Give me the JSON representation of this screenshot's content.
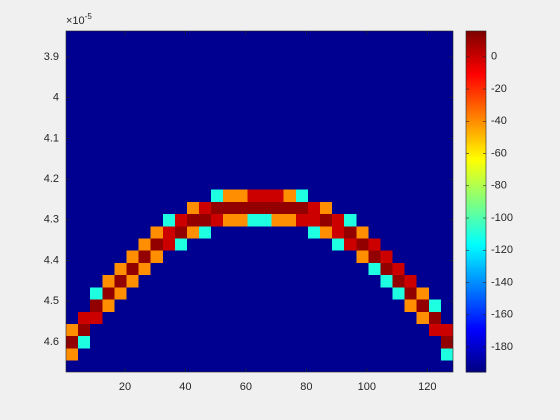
{
  "chart_data": {
    "type": "heatmap",
    "colormap": "jet",
    "xlim": [
      0.5,
      128.5
    ],
    "xticks": [
      20,
      40,
      60,
      80,
      100,
      120
    ],
    "ylim": [
      4.674e-05,
      3.836e-05
    ],
    "yticks": [
      {
        "value": 3.9e-05,
        "label": "3.9"
      },
      {
        "value": 4e-05,
        "label": "4"
      },
      {
        "value": 4.1e-05,
        "label": "4.1"
      },
      {
        "value": 4.2e-05,
        "label": "4.2"
      },
      {
        "value": 4.3e-05,
        "label": "4.3"
      },
      {
        "value": 4.4e-05,
        "label": "4.4"
      },
      {
        "value": 4.5e-05,
        "label": "4.5"
      },
      {
        "value": 4.6e-05,
        "label": "4.6"
      }
    ],
    "y_multiplier": {
      "base": "×10",
      "exponent": "-5"
    },
    "clim": [
      -195.5,
      16
    ],
    "cticks": [
      -180,
      -160,
      -140,
      -120,
      -100,
      -80,
      -60,
      -40,
      -20,
      0
    ],
    "x": [
      2.5,
      6.5,
      10.5,
      14.5,
      18.5,
      22.5,
      26.5,
      30.5,
      34.5,
      38.5,
      42.5,
      46.5,
      50.5,
      54.5,
      58.5,
      62.5,
      66.5,
      70.5,
      74.5,
      78.5,
      82.5,
      86.5,
      90.5,
      94.5,
      98.5,
      102.5,
      106.5,
      110.5,
      114.5,
      118.5,
      122.5,
      126.5
    ],
    "y": [
      3.851e-05,
      3.881e-05,
      3.911e-05,
      3.941e-05,
      3.971e-05,
      4.001e-05,
      4.031e-05,
      4.061e-05,
      4.091e-05,
      4.121e-05,
      4.151e-05,
      4.181e-05,
      4.211e-05,
      4.241e-05,
      4.271e-05,
      4.301e-05,
      4.331e-05,
      4.361e-05,
      4.391e-05,
      4.421e-05,
      4.451e-05,
      4.481e-05,
      4.511e-05,
      4.541e-05,
      4.571e-05,
      4.601e-05,
      4.631e-05,
      4.661e-05
    ],
    "z": [
      [
        -192,
        -192,
        -192,
        -192,
        -192,
        -192,
        -192,
        -192,
        -192,
        -192,
        -192,
        -192,
        -192,
        -192,
        -192,
        -192,
        -192,
        -192,
        -192,
        -192,
        -192,
        -192,
        -192,
        -192,
        -192,
        -192,
        -192,
        -192,
        -192,
        -192,
        -192,
        -192
      ],
      [
        -192,
        -192,
        -192,
        -192,
        -192,
        -192,
        -192,
        -192,
        -192,
        -192,
        -192,
        -192,
        -192,
        -192,
        -192,
        -192,
        -192,
        -192,
        -192,
        -192,
        -192,
        -192,
        -192,
        -192,
        -192,
        -192,
        -192,
        -192,
        -192,
        -192,
        -192,
        -192
      ],
      [
        -192,
        -192,
        -192,
        -192,
        -192,
        -192,
        -192,
        -192,
        -192,
        -192,
        -192,
        -192,
        -192,
        -192,
        -192,
        -192,
        -192,
        -192,
        -192,
        -192,
        -192,
        -192,
        -192,
        -192,
        -192,
        -192,
        -192,
        -192,
        -192,
        -192,
        -192,
        -192
      ],
      [
        -192,
        -192,
        -192,
        -192,
        -192,
        -192,
        -192,
        -192,
        -192,
        -192,
        -192,
        -192,
        -192,
        -192,
        -192,
        -192,
        -192,
        -192,
        -192,
        -192,
        -192,
        -192,
        -192,
        -192,
        -192,
        -192,
        -192,
        -192,
        -192,
        -192,
        -192,
        -192
      ],
      [
        -192,
        -192,
        -192,
        -192,
        -192,
        -192,
        -192,
        -192,
        -192,
        -192,
        -192,
        -192,
        -192,
        -192,
        -192,
        -192,
        -192,
        -192,
        -192,
        -192,
        -192,
        -192,
        -192,
        -192,
        -192,
        -192,
        -192,
        -192,
        -192,
        -192,
        -192,
        -192
      ],
      [
        -192,
        -192,
        -192,
        -192,
        -192,
        -192,
        -192,
        -192,
        -192,
        -192,
        -192,
        -192,
        -192,
        -192,
        -192,
        -192,
        -192,
        -192,
        -192,
        -192,
        -192,
        -192,
        -192,
        -192,
        -192,
        -192,
        -192,
        -192,
        -192,
        -192,
        -192,
        -192
      ],
      [
        -192,
        -192,
        -192,
        -192,
        -192,
        -192,
        -192,
        -192,
        -192,
        -192,
        -192,
        -192,
        -192,
        -192,
        -192,
        -192,
        -192,
        -192,
        -192,
        -192,
        -192,
        -192,
        -192,
        -192,
        -192,
        -192,
        -192,
        -192,
        -192,
        -192,
        -192,
        -192
      ],
      [
        -192,
        -192,
        -192,
        -192,
        -192,
        -192,
        -192,
        -192,
        -192,
        -192,
        -192,
        -192,
        -192,
        -192,
        -192,
        -192,
        -192,
        -192,
        -192,
        -192,
        -192,
        -192,
        -192,
        -192,
        -192,
        -192,
        -192,
        -192,
        -192,
        -192,
        -192,
        -192
      ],
      [
        -192,
        -192,
        -192,
        -192,
        -192,
        -192,
        -192,
        -192,
        -192,
        -192,
        -192,
        -192,
        -192,
        -192,
        -192,
        -192,
        -192,
        -192,
        -192,
        -192,
        -192,
        -192,
        -192,
        -192,
        -192,
        -192,
        -192,
        -192,
        -192,
        -192,
        -192,
        -192
      ],
      [
        -192,
        -192,
        -192,
        -192,
        -192,
        -192,
        -192,
        -192,
        -192,
        -192,
        -192,
        -192,
        -192,
        -192,
        -192,
        -192,
        -192,
        -192,
        -192,
        -192,
        -192,
        -192,
        -192,
        -192,
        -192,
        -192,
        -192,
        -192,
        -192,
        -192,
        -192,
        -192
      ],
      [
        -192,
        -192,
        -192,
        -192,
        -192,
        -192,
        -192,
        -192,
        -192,
        -192,
        -192,
        -192,
        -192,
        -192,
        -192,
        -192,
        -192,
        -192,
        -192,
        -192,
        -192,
        -192,
        -192,
        -192,
        -192,
        -192,
        -192,
        -192,
        -192,
        -192,
        -192,
        -192
      ],
      [
        -192,
        -192,
        -192,
        -192,
        -192,
        -192,
        -192,
        -192,
        -192,
        -192,
        -192,
        -192,
        -192,
        -192,
        -192,
        -192,
        -192,
        -192,
        -192,
        -192,
        -192,
        -192,
        -192,
        -192,
        -192,
        -192,
        -192,
        -192,
        -192,
        -192,
        -192,
        -192
      ],
      [
        -192,
        -192,
        -192,
        -192,
        -192,
        -192,
        -192,
        -192,
        -192,
        -192,
        -192,
        -192,
        -192,
        -192,
        -192,
        -192,
        -192,
        -192,
        -192,
        -192,
        -192,
        -192,
        -192,
        -192,
        -192,
        -192,
        -192,
        -192,
        -192,
        -192,
        -192,
        -192
      ],
      [
        -192,
        -192,
        -192,
        -192,
        -192,
        -192,
        -192,
        -192,
        -192,
        -192,
        -192,
        -192,
        -110,
        -40,
        -40,
        0,
        0,
        0,
        -40,
        -110,
        -192,
        -192,
        -192,
        -192,
        -192,
        -192,
        -192,
        -192,
        -192,
        -192,
        -192,
        -192
      ],
      [
        -192,
        -192,
        -192,
        -192,
        -192,
        -192,
        -192,
        -192,
        -192,
        -192,
        -40,
        0,
        12,
        12,
        12,
        12,
        12,
        12,
        12,
        12,
        0,
        -40,
        -192,
        -192,
        -192,
        -192,
        -192,
        -192,
        -192,
        -192,
        -192,
        -192
      ],
      [
        -192,
        -192,
        -192,
        -192,
        -192,
        -192,
        -192,
        -192,
        -110,
        0,
        12,
        12,
        0,
        -40,
        -40,
        -110,
        -110,
        -40,
        -40,
        0,
        0,
        12,
        0,
        -110,
        -192,
        -192,
        -192,
        -192,
        -192,
        -192,
        -192,
        -192
      ],
      [
        -192,
        -192,
        -192,
        -192,
        -192,
        -192,
        -192,
        -40,
        0,
        12,
        -40,
        -110,
        -192,
        -192,
        -192,
        -192,
        -192,
        -192,
        -192,
        -192,
        -110,
        -40,
        0,
        12,
        -40,
        -192,
        -192,
        -192,
        -192,
        -192,
        -192,
        -192
      ],
      [
        -192,
        -192,
        -192,
        -192,
        -192,
        -192,
        -40,
        12,
        0,
        -110,
        -192,
        -192,
        -192,
        -192,
        -192,
        -192,
        -192,
        -192,
        -192,
        -192,
        -192,
        -192,
        -110,
        0,
        12,
        0,
        -192,
        -192,
        -192,
        -192,
        -192,
        -192
      ],
      [
        -192,
        -192,
        -192,
        -192,
        -192,
        -40,
        12,
        -40,
        -192,
        -192,
        -192,
        -192,
        -192,
        -192,
        -192,
        -192,
        -192,
        -192,
        -192,
        -192,
        -192,
        -192,
        -192,
        -192,
        -40,
        12,
        0,
        -192,
        -192,
        -192,
        -192,
        -192
      ],
      [
        -192,
        -192,
        -192,
        -192,
        -40,
        12,
        -40,
        -192,
        -192,
        -192,
        -192,
        -192,
        -192,
        -192,
        -192,
        -192,
        -192,
        -192,
        -192,
        -192,
        -192,
        -192,
        -192,
        -192,
        -192,
        -110,
        12,
        0,
        -192,
        -192,
        -192,
        -192
      ],
      [
        -192,
        -192,
        -192,
        -40,
        12,
        -40,
        -192,
        -192,
        -192,
        -192,
        -192,
        -192,
        -192,
        -192,
        -192,
        -192,
        -192,
        -192,
        -192,
        -192,
        -192,
        -192,
        -192,
        -192,
        -192,
        -192,
        -110,
        12,
        0,
        -192,
        -192,
        -192
      ],
      [
        -192,
        -192,
        -110,
        12,
        -40,
        -192,
        -192,
        -192,
        -192,
        -192,
        -192,
        -192,
        -192,
        -192,
        -192,
        -192,
        -192,
        -192,
        -192,
        -192,
        -192,
        -192,
        -192,
        -192,
        -192,
        -192,
        -192,
        -110,
        12,
        -40,
        -192,
        -192
      ],
      [
        -192,
        -192,
        12,
        -40,
        -192,
        -192,
        -192,
        -192,
        -192,
        -192,
        -192,
        -192,
        -192,
        -192,
        -192,
        -192,
        -192,
        -192,
        -192,
        -192,
        -192,
        -192,
        -192,
        -192,
        -192,
        -192,
        -192,
        -192,
        -40,
        12,
        -110,
        -192
      ],
      [
        -192,
        0,
        0,
        -192,
        -192,
        -192,
        -192,
        -192,
        -192,
        -192,
        -192,
        -192,
        -192,
        -192,
        -192,
        -192,
        -192,
        -192,
        -192,
        -192,
        -192,
        -192,
        -192,
        -192,
        -192,
        -192,
        -192,
        -192,
        -192,
        -40,
        12,
        -192
      ],
      [
        -40,
        12,
        -192,
        -192,
        -192,
        -192,
        -192,
        -192,
        -192,
        -192,
        -192,
        -192,
        -192,
        -192,
        -192,
        -192,
        -192,
        -192,
        -192,
        -192,
        -192,
        -192,
        -192,
        -192,
        -192,
        -192,
        -192,
        -192,
        -192,
        -192,
        0,
        0
      ],
      [
        12,
        -110,
        -192,
        -192,
        -192,
        -192,
        -192,
        -192,
        -192,
        -192,
        -192,
        -192,
        -192,
        -192,
        -192,
        -192,
        -192,
        -192,
        -192,
        -192,
        -192,
        -192,
        -192,
        -192,
        -192,
        -192,
        -192,
        -192,
        -192,
        -192,
        -192,
        12
      ],
      [
        -40,
        -192,
        -192,
        -192,
        -192,
        -192,
        -192,
        -192,
        -192,
        -192,
        -192,
        -192,
        -192,
        -192,
        -192,
        -192,
        -192,
        -192,
        -192,
        -192,
        -192,
        -192,
        -192,
        -192,
        -192,
        -192,
        -192,
        -192,
        -192,
        -192,
        -192,
        -110
      ],
      [
        -192,
        -192,
        -192,
        -192,
        -192,
        -192,
        -192,
        -192,
        -192,
        -192,
        -192,
        -192,
        -192,
        -192,
        -192,
        -192,
        -192,
        -192,
        -192,
        -192,
        -192,
        -192,
        -192,
        -192,
        -192,
        -192,
        -192,
        -192,
        -192,
        -192,
        -192,
        -192
      ]
    ]
  }
}
